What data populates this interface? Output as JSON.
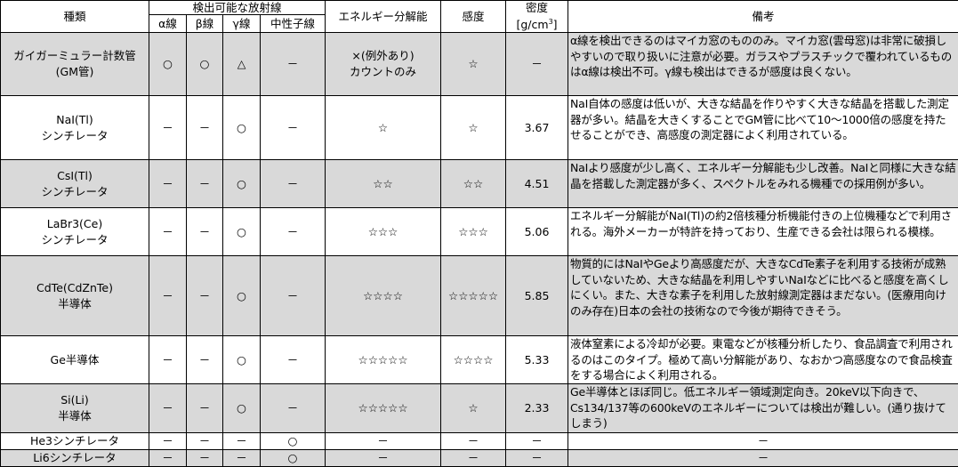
{
  "header": {
    "type": "種類",
    "detectable": "検出可能な放射線",
    "alpha": "α線",
    "beta": "β線",
    "gamma": "γ線",
    "neutron": "中性子線",
    "energy_resolution": "エネルギー分解能",
    "sensitivity": "感度",
    "density": "密度",
    "density_unit_prefix": "[g/cm",
    "density_unit_sup": "3",
    "density_unit_suffix": "]",
    "remarks": "備考"
  },
  "colors": {
    "shaded_row": "#d9d9d9",
    "border": "#000000"
  },
  "rows": [
    {
      "name1": "ガイガーミュラー計数管",
      "name2": "(GM管)",
      "alpha": "○",
      "beta": "○",
      "gamma": "△",
      "neutron": "－",
      "energy1": "×(例外あり)",
      "energy2": "カウントのみ",
      "sensitivity": "☆",
      "density": "－",
      "note": "α線を検出できるのはマイカ窓のもののみ。マイカ窓(雲母窓)は非常に破損しやすいので取り扱いに注意が必要。ガラスやプラスチックで覆われているものはα線は検出不可。γ線も検出はできるが感度は良くない。"
    },
    {
      "name1": "NaI(Tl)",
      "name2": "シンチレータ",
      "alpha": "－",
      "beta": "－",
      "gamma": "○",
      "neutron": "－",
      "energy1": "☆",
      "energy2": "",
      "sensitivity": "☆",
      "density": "3.67",
      "note": "NaI自体の感度は低いが、大きな結晶を作りやすく大きな結晶を搭載した測定器が多い。結晶を大きくすることでGM管に比べて10～1000倍の感度を持たせることができ、高感度の測定器によく利用されている。"
    },
    {
      "name1": "CsI(Tl)",
      "name2": "シンチレータ",
      "alpha": "－",
      "beta": "－",
      "gamma": "○",
      "neutron": "－",
      "energy1": "☆☆",
      "energy2": "",
      "sensitivity": "☆☆",
      "density": "4.51",
      "note": "NaIより感度が少し高く、エネルギー分解能も少し改善。NaIと同様に大きな結晶を搭載した測定器が多く、スペクトルをみれる機種での採用例が多い。"
    },
    {
      "name1": "LaBr3(Ce)",
      "name2": "シンチレータ",
      "alpha": "－",
      "beta": "－",
      "gamma": "○",
      "neutron": "－",
      "energy1": "☆☆☆",
      "energy2": "",
      "sensitivity": "☆☆☆",
      "density": "5.06",
      "note": "エネルギー分解能がNaI(Tl)の約2倍核種分析機能付きの上位機種などで利用される。海外メーカーが特許を持っており、生産できる会社は限られる模様。"
    },
    {
      "name1": "CdTe(CdZnTe)",
      "name2": "半導体",
      "alpha": "－",
      "beta": "－",
      "gamma": "○",
      "neutron": "－",
      "energy1": "☆☆☆☆",
      "energy2": "",
      "sensitivity": "☆☆☆☆☆",
      "density": "5.85",
      "note": "物質的にはNaIやGeより高感度だが、大きなCdTe素子を利用する技術が成熟していないため、大きな結晶を利用しやすいNaIなどに比べると感度を高くしにくい。また、大きな素子を利用した放射線測定器はまだない。(医療用向けのみ存在)日本の会社の技術なので今後が期待できそう。"
    },
    {
      "name1": "Ge半導体",
      "name2": "",
      "alpha": "－",
      "beta": "－",
      "gamma": "○",
      "neutron": "－",
      "energy1": "☆☆☆☆☆",
      "energy2": "",
      "sensitivity": "☆☆☆☆",
      "density": "5.33",
      "note": "液体窒素による冷却が必要。東電などが核種分析したり、食品調査で利用されるのはこのタイプ。極めて高い分解能があり、なおかつ高感度なので食品検査をする場合によく利用される。"
    },
    {
      "name1": "Si(Li)",
      "name2": "半導体",
      "alpha": "－",
      "beta": "－",
      "gamma": "○",
      "neutron": "－",
      "energy1": "☆☆☆☆☆",
      "energy2": "",
      "sensitivity": "☆",
      "density": "2.33",
      "note": "Ge半導体とほぼ同じ。低エネルギー領域測定向き。20keV以下向きで、Cs134/137等の600keVのエネルギーについては検出が難しい。(通り抜けてしまう)"
    },
    {
      "name1": "He3シンチレータ",
      "name2": "",
      "alpha": "－",
      "beta": "－",
      "gamma": "－",
      "neutron": "○",
      "energy1": "－",
      "energy2": "",
      "sensitivity": "－",
      "density": "－",
      "note": "－"
    },
    {
      "name1": "Li6シンチレータ",
      "name2": "",
      "alpha": "－",
      "beta": "－",
      "gamma": "－",
      "neutron": "○",
      "energy1": "－",
      "energy2": "",
      "sensitivity": "－",
      "density": "－",
      "note": "－"
    }
  ]
}
